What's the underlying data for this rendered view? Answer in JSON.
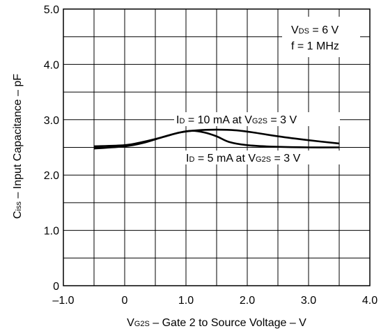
{
  "chart_data": {
    "type": "line",
    "title": "",
    "xlabel": {
      "main": "V",
      "sub": "G2S",
      "rest": " – Gate 2 to Source Voltage – V"
    },
    "ylabel": {
      "main": "C",
      "sub": "iss",
      "rest": " – Input Capacitance – pF"
    },
    "xlim": [
      -1.0,
      4.0
    ],
    "ylim": [
      0,
      5.0
    ],
    "x_ticks": [
      -1.0,
      0,
      1.0,
      2.0,
      3.0,
      4.0
    ],
    "x_tick_labels": [
      "–1.0",
      "0",
      "1.0",
      "2.0",
      "3.0",
      "4.0"
    ],
    "y_ticks": [
      0,
      1.0,
      2.0,
      3.0,
      4.0,
      5.0
    ],
    "y_tick_labels": [
      "0",
      "1.0",
      "2.0",
      "3.0",
      "4.0",
      "5.0"
    ],
    "grid": true,
    "minor_grid_step_x": 0.5,
    "minor_grid_step_y": 0.5,
    "annotation": {
      "line1": {
        "main": "V",
        "sub": "DS",
        "rest": " = 6 V"
      },
      "line2": "f = 1 MHz"
    },
    "series": [
      {
        "label": {
          "main": "I",
          "sub": "D",
          "rest1": " = 10 mA at V",
          "sub2": "G2S",
          "rest2": " = 3 V"
        },
        "color": "#000000",
        "x": [
          -0.5,
          0,
          0.3,
          0.6,
          0.9,
          1.2,
          1.5,
          1.8,
          2.1,
          2.5,
          3.0,
          3.5
        ],
        "y": [
          2.48,
          2.52,
          2.58,
          2.68,
          2.77,
          2.81,
          2.82,
          2.81,
          2.77,
          2.7,
          2.63,
          2.57
        ]
      },
      {
        "label": {
          "main": "I",
          "sub": "D",
          "rest1": " = 5 mA at V",
          "sub2": "G2S",
          "rest2": " = 3 V"
        },
        "color": "#000000",
        "x": [
          -0.5,
          0,
          0.3,
          0.6,
          0.9,
          1.1,
          1.3,
          1.5,
          1.7,
          2.0,
          2.5,
          3.0,
          3.5
        ],
        "y": [
          2.52,
          2.54,
          2.6,
          2.68,
          2.77,
          2.8,
          2.77,
          2.7,
          2.6,
          2.54,
          2.51,
          2.5,
          2.5
        ]
      }
    ]
  }
}
